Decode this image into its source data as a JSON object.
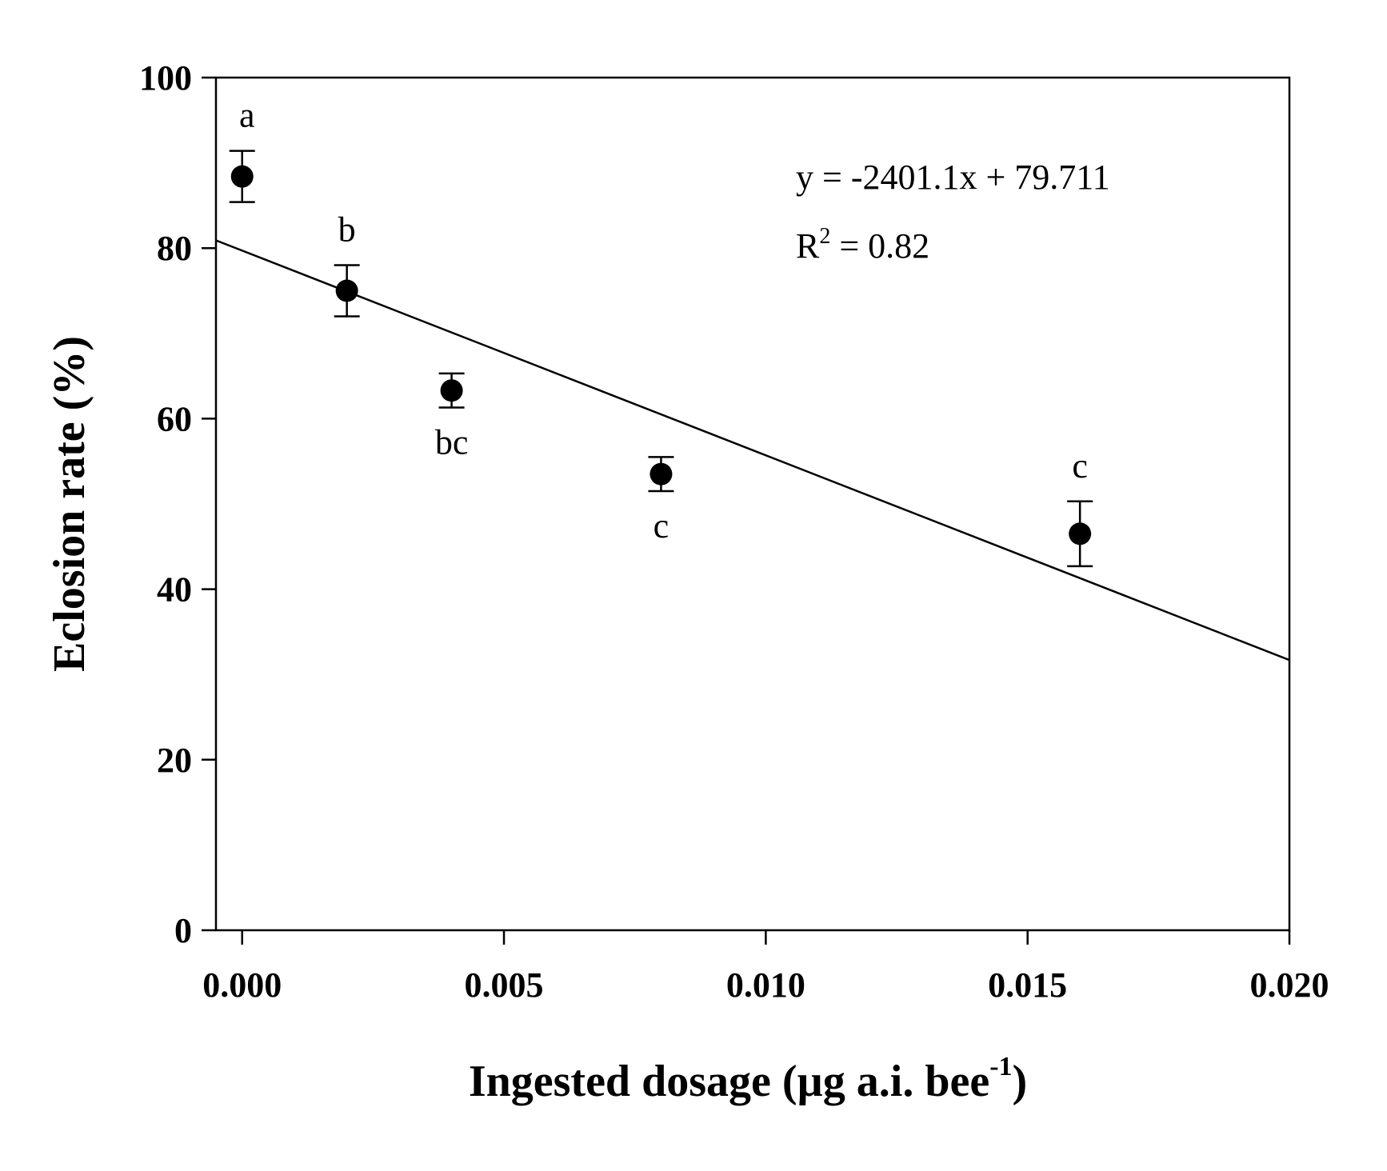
{
  "chart_data": {
    "type": "scatter",
    "xlabel": {
      "main": "Ingested dosage  (µg a.i. bee",
      "superscript": "-1",
      "close": ")"
    },
    "ylabel": "Eclosion rate (%)",
    "xlim": [
      -0.0005,
      0.02
    ],
    "ylim": [
      0,
      100
    ],
    "x_ticks": [
      0.0,
      0.005,
      0.01,
      0.015,
      0.02
    ],
    "x_tick_labels": [
      "0.000",
      "0.005",
      "0.010",
      "0.015",
      "0.020"
    ],
    "y_ticks": [
      0,
      20,
      40,
      60,
      80,
      100
    ],
    "y_tick_labels": [
      "0",
      "20",
      "40",
      "60",
      "80",
      "100"
    ],
    "grid": false,
    "points": [
      {
        "x": 0.0,
        "y": 88.4,
        "err": 3.0,
        "letter": "a",
        "letter_pos": "above"
      },
      {
        "x": 0.002,
        "y": 75.0,
        "err": 3.0,
        "letter": "b",
        "letter_pos": "above"
      },
      {
        "x": 0.004,
        "y": 63.3,
        "err": 2.0,
        "letter": "bc",
        "letter_pos": "below"
      },
      {
        "x": 0.008,
        "y": 53.5,
        "err": 2.0,
        "letter": "c",
        "letter_pos": "below"
      },
      {
        "x": 0.016,
        "y": 46.5,
        "err": 3.8,
        "letter": "c",
        "letter_pos": "above"
      }
    ],
    "regression": {
      "slope": -2401.1,
      "intercept": 79.711,
      "x_range": [
        -0.0005,
        0.02
      ],
      "equation": "y = -2401.1x + 79.711",
      "r2_prefix": "R",
      "r2_superscript": "2",
      "r2_value": " = 0.82"
    }
  }
}
